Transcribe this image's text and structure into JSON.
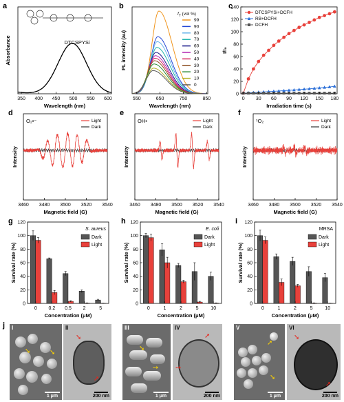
{
  "panel_letters": [
    "a",
    "b",
    "c",
    "d",
    "e",
    "f",
    "g",
    "h",
    "i",
    "j"
  ],
  "chart_data": [
    {
      "id": "a",
      "type": "line",
      "ylabel": "Absorbance",
      "xlabel": "Wavelength (nm)",
      "xlim": [
        340,
        610
      ],
      "xticks": [
        350,
        400,
        450,
        500,
        550,
        600
      ],
      "molecule_label": "DTCSPYSi",
      "peak_x": 497,
      "peak_y": 0.58,
      "ylim": [
        0,
        1
      ]
    },
    {
      "id": "b",
      "type": "line",
      "ylabel": "PL intensity (au)",
      "xlabel": "Wavelength (nm)",
      "xlim": [
        530,
        855
      ],
      "xticks": [
        550,
        650,
        750,
        850
      ],
      "legend_title": "f_T (vol %)",
      "legend_title_main": "f",
      "legend_title_sub": "T",
      "legend_title_rest": " (vol %)",
      "series": [
        {
          "name": "99",
          "color": "#f0951e",
          "peak": 1.0,
          "center": 645
        },
        {
          "name": "90",
          "color": "#2347d6",
          "peak": 0.69,
          "center": 640
        },
        {
          "name": "80",
          "color": "#68b4ea",
          "peak": 0.63,
          "center": 638
        },
        {
          "name": "70",
          "color": "#1fb5ac",
          "peak": 0.56,
          "center": 636
        },
        {
          "name": "60",
          "color": "#1a1a8a",
          "peak": 0.5,
          "center": 632
        },
        {
          "name": "50",
          "color": "#b326b3",
          "peak": 0.46,
          "center": 630
        },
        {
          "name": "40",
          "color": "#d6285f",
          "peak": 0.43,
          "center": 628
        },
        {
          "name": "30",
          "color": "#8a4b1d",
          "peak": 0.4,
          "center": 626
        },
        {
          "name": "20",
          "color": "#2e8b37",
          "peak": 0.36,
          "center": 624
        },
        {
          "name": "10",
          "color": "#b5b32a",
          "peak": 0.31,
          "center": 622
        },
        {
          "name": "0",
          "color": "#555555",
          "peak": 0.28,
          "center": 620
        }
      ]
    },
    {
      "id": "c",
      "type": "line",
      "ylabel": "I/I₀",
      "xlabel": "Irradiation time (s)",
      "xlim": [
        -5,
        185
      ],
      "ylim": [
        0,
        140
      ],
      "xticks": [
        0,
        30,
        60,
        90,
        120,
        150,
        180
      ],
      "yticks": [
        0,
        20,
        40,
        60,
        80,
        100,
        120,
        140
      ],
      "series": [
        {
          "name": "DTCSPYSi+DCFH",
          "color": "#e8413b",
          "marker": "circle",
          "x": [
            0,
            10,
            20,
            30,
            40,
            50,
            60,
            70,
            80,
            90,
            100,
            110,
            120,
            130,
            140,
            150,
            160,
            170,
            180
          ],
          "y": [
            1,
            24,
            40,
            52,
            62,
            70,
            78,
            85,
            91,
            97,
            102,
            107,
            111,
            115,
            119,
            123,
            126,
            129,
            132
          ]
        },
        {
          "name": "RB+DCFH",
          "color": "#2b6fd8",
          "marker": "triangle",
          "x": [
            0,
            10,
            20,
            30,
            40,
            50,
            60,
            70,
            80,
            90,
            100,
            110,
            120,
            130,
            140,
            150,
            160,
            170,
            180
          ],
          "y": [
            1,
            1.5,
            2,
            2.5,
            3,
            3.5,
            4,
            4.5,
            5,
            5.6,
            6.2,
            6.8,
            7.4,
            8,
            8.7,
            9.4,
            10.2,
            11,
            12
          ]
        },
        {
          "name": "DCFH",
          "color": "#555555",
          "marker": "square",
          "x": [
            0,
            10,
            20,
            30,
            40,
            50,
            60,
            70,
            80,
            90,
            100,
            110,
            120,
            130,
            140,
            150,
            160,
            170,
            180
          ],
          "y": [
            1,
            1,
            1,
            1,
            1,
            1,
            1,
            1,
            1,
            1,
            1,
            1,
            1,
            1,
            1,
            1,
            1,
            1,
            1
          ]
        }
      ]
    },
    {
      "id": "d",
      "type": "line",
      "ylabel": "Intensity",
      "xlabel": "Magnetic field (G)",
      "xlim": [
        3460,
        3540
      ],
      "xticks": [
        3460,
        3480,
        3500,
        3520,
        3540
      ],
      "species_label": "O₂•⁻",
      "legend": [
        "Light",
        "Dark"
      ]
    },
    {
      "id": "e",
      "type": "line",
      "ylabel": "Intensity",
      "xlabel": "Magnetic field (G)",
      "xlim": [
        3460,
        3540
      ],
      "xticks": [
        3460,
        3480,
        3500,
        3520,
        3540
      ],
      "species_label": "OH•",
      "legend": [
        "Light",
        "Dark"
      ]
    },
    {
      "id": "f",
      "type": "line",
      "ylabel": "Intensity",
      "xlabel": "Magnetic field (G)",
      "xlim": [
        3460,
        3540
      ],
      "xticks": [
        3460,
        3480,
        3500,
        3520,
        3540
      ],
      "species_label": "¹O₂",
      "legend": [
        "Light",
        "Dark"
      ]
    },
    {
      "id": "g",
      "type": "bar",
      "ylabel": "Survival rate (%)",
      "xlabel": "Concentration (μM)",
      "organism": "S. aureus",
      "ylim": [
        0,
        120
      ],
      "yticks": [
        0,
        20,
        40,
        60,
        80,
        100,
        120
      ],
      "categories": [
        "0",
        "0.2",
        "0.5",
        "2",
        "5"
      ],
      "series": [
        {
          "name": "Dark",
          "color": "#555555",
          "values": [
            100,
            66,
            44,
            18,
            5
          ],
          "err": [
            7,
            1,
            3,
            2,
            1
          ]
        },
        {
          "name": "Light",
          "color": "#e8413b",
          "values": [
            93,
            16,
            3,
            0.5,
            0.2
          ],
          "err": [
            4,
            3,
            1,
            0.3,
            0.2
          ]
        }
      ]
    },
    {
      "id": "h",
      "type": "bar",
      "ylabel": "Survival rate (%)",
      "xlabel": "Concentration (μM)",
      "organism": "E. coli",
      "ylim": [
        0,
        120
      ],
      "yticks": [
        0,
        20,
        40,
        60,
        80,
        100,
        120
      ],
      "categories": [
        "0",
        "1",
        "2",
        "5",
        "10"
      ],
      "series": [
        {
          "name": "Dark",
          "color": "#555555",
          "values": [
            100,
            79,
            56,
            47,
            40
          ],
          "err": [
            3,
            9,
            3,
            13,
            6
          ]
        },
        {
          "name": "Light",
          "color": "#e8413b",
          "values": [
            97,
            60,
            32,
            2,
            0.5
          ],
          "err": [
            5,
            8,
            2,
            1,
            0.3
          ]
        }
      ]
    },
    {
      "id": "i",
      "type": "bar",
      "ylabel": "Survival rate (%)",
      "xlabel": "Concentration (μM)",
      "organism": "MRSA",
      "ylim": [
        0,
        120
      ],
      "yticks": [
        0,
        20,
        40,
        60,
        80,
        100,
        120
      ],
      "categories": [
        "0",
        "1",
        "2",
        "5",
        "10"
      ],
      "series": [
        {
          "name": "Dark",
          "color": "#555555",
          "values": [
            100,
            69,
            62,
            47,
            38
          ],
          "err": [
            8,
            4,
            6,
            7,
            6
          ]
        },
        {
          "name": "Light",
          "color": "#e8413b",
          "values": [
            93,
            31,
            26,
            0.5,
            0.2
          ],
          "err": [
            5,
            5,
            2,
            0.3,
            0.2
          ]
        }
      ]
    }
  ],
  "micrographs": [
    {
      "label": "I",
      "kind": "sem",
      "scale": "1 μm"
    },
    {
      "label": "II",
      "kind": "tem",
      "scale": "200 nm"
    },
    {
      "label": "III",
      "kind": "sem",
      "scale": "1 μm"
    },
    {
      "label": "IV",
      "kind": "tem",
      "scale": "200 nm"
    },
    {
      "label": "V",
      "kind": "sem",
      "scale": "1 μm"
    },
    {
      "label": "VI",
      "kind": "tem",
      "scale": "200 nm"
    }
  ]
}
